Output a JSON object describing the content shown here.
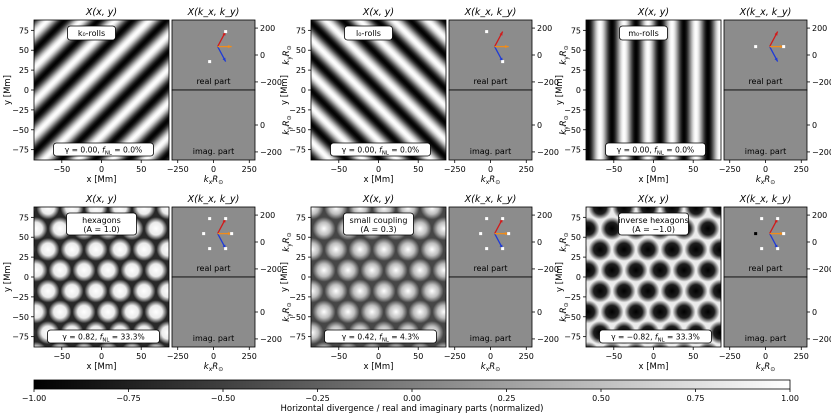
{
  "figure": {
    "panel_titles": {
      "real_space": "X(x, y)",
      "fourier": "X(k_x, k_y)"
    },
    "axis_labels": {
      "x": "x [Mm]",
      "y": "y [Mm]",
      "kx": "k_x R_⊙",
      "ky": "k_y R_⊙"
    },
    "x_ticks": [
      "−50",
      "0",
      "50"
    ],
    "y_ticks": [
      "75",
      "50",
      "25",
      "0",
      "−25",
      "−50",
      "−75"
    ],
    "k_x_ticks": [
      "−250",
      "0",
      "250"
    ],
    "k_y_ticks_top": [
      "200",
      "0",
      "−200"
    ],
    "k_y_ticks_bottom": [
      "0",
      "−200"
    ],
    "inset_labels": {
      "real": "real part",
      "imag": "imag. part"
    },
    "colorbar": {
      "ticks": [
        "−1.00",
        "−0.75",
        "−0.50",
        "−0.25",
        "0.00",
        "0.25",
        "0.50",
        "0.75",
        "1.00"
      ],
      "label": "Horizontal divergence / real and imaginary parts (normalized)"
    },
    "colors": {
      "k_vector": "#d11a1a",
      "l_vector": "#1f3bd6",
      "m_vector": "#f08c1a",
      "map_gray": "#8c8c8c"
    }
  },
  "chart_data": {
    "type": "heatmap",
    "value_range": [
      -1,
      1
    ],
    "x_range_Mm": [
      -85,
      85
    ],
    "y_range_Mm": [
      -88,
      88
    ],
    "panels": [
      {
        "label_line1": "k₀-rolls",
        "label_line2": "",
        "gamma_text": "γ = 0.00, f_NL = 0.0%",
        "pattern": "roll",
        "angle_deg": 45
      },
      {
        "label_line1": "l₀-rolls",
        "label_line2": "",
        "gamma_text": "γ = 0.00, f_NL = 0.0%",
        "pattern": "roll",
        "angle_deg": -45
      },
      {
        "label_line1": "m₀-rolls",
        "label_line2": "",
        "gamma_text": "γ = 0.00, f_NL = 0.0%",
        "pattern": "roll",
        "angle_deg": 0
      },
      {
        "label_line1": "hexagons",
        "label_line2": "(A = 1.0)",
        "gamma_text": "γ = 0.82, f_NL = 33.3%",
        "pattern": "hex",
        "A": 1.0
      },
      {
        "label_line1": "small coupling",
        "label_line2": "(A = 0.3)",
        "gamma_text": "γ = 0.42, f_NL = 4.3%",
        "pattern": "hex",
        "A": 0.3
      },
      {
        "label_line1": "inverse hexagons",
        "label_line2": "(A = −1.0)",
        "gamma_text": "γ = −0.82, f_NL = 33.3%",
        "pattern": "hex",
        "A": -1.0
      }
    ]
  }
}
